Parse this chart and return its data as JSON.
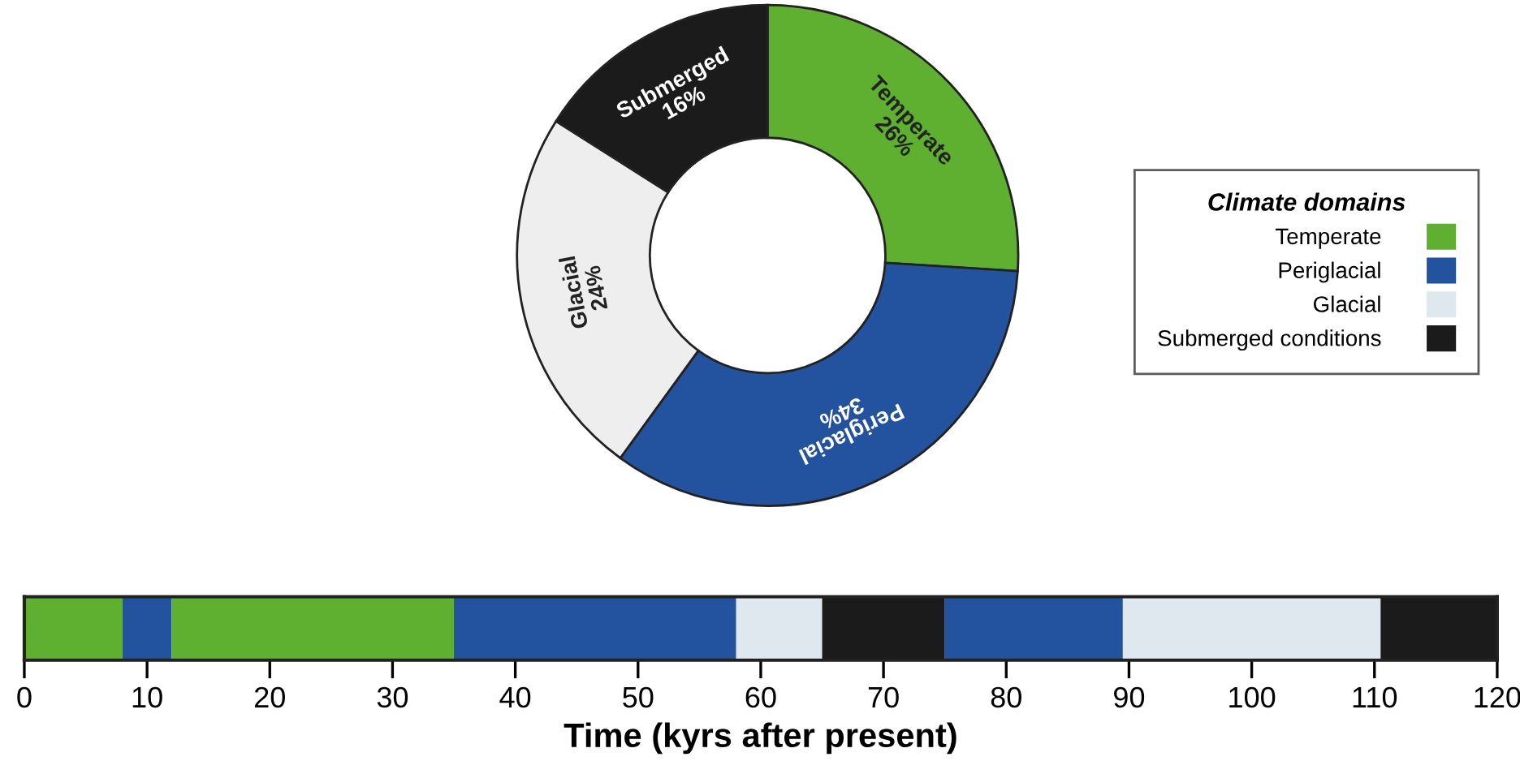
{
  "chart_data": [
    {
      "type": "donut",
      "categories": [
        "Temperate",
        "Periglacial",
        "Glacial",
        "Submerged"
      ],
      "values": [
        26,
        34,
        24,
        16
      ],
      "value_labels": [
        "26%",
        "34%",
        "24%",
        "16%"
      ],
      "colors": [
        "#5fb030",
        "#23529f",
        "#eeeeee",
        "#1b1b1b"
      ]
    },
    {
      "type": "bar",
      "orientation": "horizontal",
      "stacked": true,
      "categories": [
        null
      ],
      "xlabel": "Time (kyrs after present)",
      "xlim": [
        0,
        120
      ],
      "xticks": [
        0,
        10,
        20,
        30,
        40,
        50,
        60,
        70,
        80,
        90,
        100,
        110,
        120
      ],
      "legend": "top right",
      "legend_title": "Climate domains",
      "series": [
        {
          "name": "Temperate",
          "color": "#5fb030",
          "values": [
            8
          ]
        },
        {
          "name": "Periglacial",
          "color": "#23529f",
          "values": [
            4
          ]
        },
        {
          "color": "#5fb030",
          "values": [
            23
          ]
        },
        {
          "color": "#23529f",
          "values": [
            23
          ]
        },
        {
          "name": "Glacial",
          "color": "#e0e8ef",
          "values": [
            7
          ]
        },
        {
          "name": "Submerged conditions",
          "color": "#1b1b1b",
          "values": [
            10
          ]
        },
        {
          "color": "#23529f",
          "values": [
            14.5
          ]
        },
        {
          "color": "#e0e8ef",
          "values": [
            21
          ]
        },
        {
          "color": "#1b1b1b",
          "values": [
            9.5
          ]
        }
      ]
    }
  ]
}
